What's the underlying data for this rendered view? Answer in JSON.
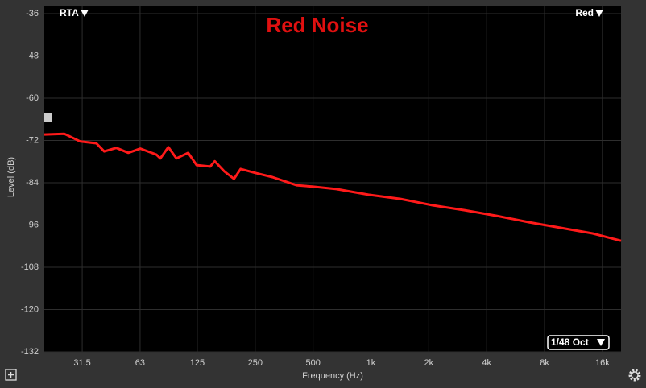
{
  "chart_data": {
    "type": "line",
    "title": "Red Noise",
    "xlabel": "Frequency (Hz)",
    "ylabel": "Level (dB)",
    "xscale": "log",
    "grid": true,
    "x": [
      20,
      25.4,
      30.8,
      37.3,
      41,
      47.4,
      54.7,
      63.2,
      76.5,
      80.3,
      88.4,
      97.3,
      112,
      124,
      146,
      154,
      173,
      194,
      210,
      254,
      307,
      410,
      496,
      662,
      971,
      1425,
      2092,
      3068,
      4504,
      6608,
      9696,
      14224,
      20000
    ],
    "series": [
      {
        "name": "Red",
        "color": "#ff1a1a",
        "values": [
          -70.3,
          -70.1,
          -72.3,
          -72.8,
          -75.1,
          -74.1,
          -75.5,
          -74.3,
          -76,
          -77.1,
          -73.9,
          -77.1,
          -75.5,
          -79,
          -79.4,
          -77.9,
          -80.8,
          -82.9,
          -80.1,
          -81.3,
          -82.4,
          -84.7,
          -85.1,
          -85.8,
          -87.4,
          -88.6,
          -90.4,
          -91.8,
          -93.4,
          -95.2,
          -96.8,
          -98.4,
          -100.5
        ]
      }
    ],
    "xlim": [
      20,
      20000
    ],
    "ylim": [
      -132,
      -36
    ],
    "xticks": [
      31.5,
      63,
      125,
      250,
      500,
      {
        "value": 1000,
        "label": "1k"
      },
      {
        "value": 2000,
        "label": "2k"
      },
      {
        "value": 4000,
        "label": "4k"
      },
      {
        "value": 8000,
        "label": "8k"
      },
      {
        "value": 16000,
        "label": "16k"
      }
    ],
    "yticks": [
      -132,
      -120,
      -108,
      -96,
      -84,
      -72,
      -60,
      -48,
      -36
    ]
  },
  "controls": {
    "mode": "RTA",
    "smoothing": "1/48 Oct"
  }
}
